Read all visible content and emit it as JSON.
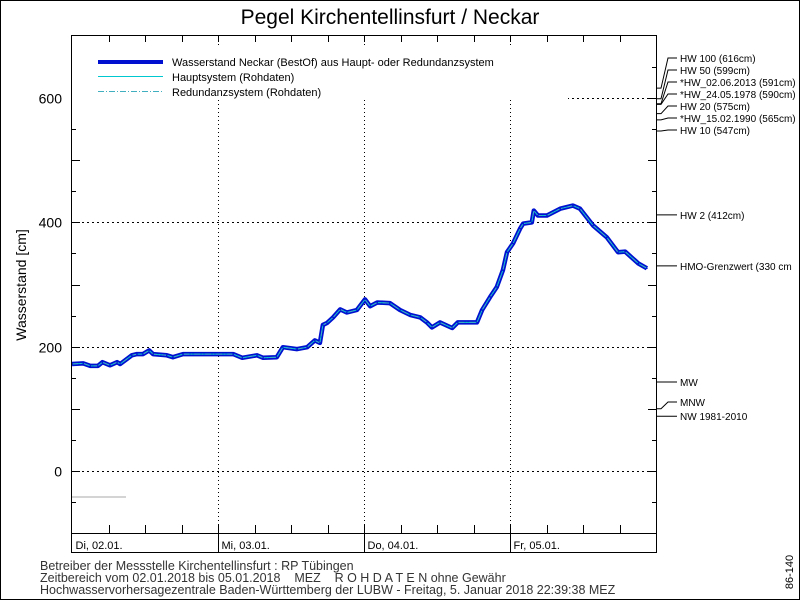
{
  "chart_data": {
    "type": "line",
    "title": "Pegel Kirchentellinsfurt / Neckar",
    "ylabel": "Wasserstand [cm]",
    "xlabel": "",
    "ylim": [
      -100,
      700
    ],
    "xlim": [
      "2018-01-02T00:00",
      "2018-01-06T00:00"
    ],
    "yticks": [
      0,
      200,
      400,
      600
    ],
    "ytick_labels": [
      "0",
      "200",
      "400",
      "600"
    ],
    "xtick_labels": [
      "Di, 02.01.",
      "Mi, 03.01.",
      "Do, 04.01.",
      "Fr, 05.01."
    ],
    "xticks": [
      "2018-01-02T00:00",
      "2018-01-03T00:00",
      "2018-01-04T00:00",
      "2018-01-05T00:00"
    ],
    "grid": true,
    "legend_position": "top-left",
    "legend": [
      {
        "label": "Wasserstand Neckar  (BestOf) aus Haupt- oder Redundanzsystem",
        "color": "#0010d0",
        "style": "thick"
      },
      {
        "label": "Hauptsystem (Rohdaten)",
        "color": "#00c8d0",
        "style": "solid"
      },
      {
        "label": "Redundanzsystem (Rohdaten)",
        "color": "#40b0c0",
        "style": "dash-dot"
      }
    ],
    "series": [
      {
        "name": "Wasserstand Neckar  (BestOf) aus Haupt- oder Redundanzsystem",
        "color": "#0010d0",
        "points": [
          [
            "2018-01-02T00:00",
            172
          ],
          [
            "2018-01-02T01:50",
            173
          ],
          [
            "2018-01-02T03:00",
            169
          ],
          [
            "2018-01-02T04:15",
            169
          ],
          [
            "2018-01-02T05:00",
            175
          ],
          [
            "2018-01-02T06:15",
            170
          ],
          [
            "2018-01-02T07:25",
            175
          ],
          [
            "2018-01-02T07:55",
            172
          ],
          [
            "2018-01-02T09:50",
            186
          ],
          [
            "2018-01-02T10:40",
            188
          ],
          [
            "2018-01-02T11:40",
            188
          ],
          [
            "2018-01-02T12:40",
            194
          ],
          [
            "2018-01-02T13:20",
            188
          ],
          [
            "2018-01-02T15:35",
            186
          ],
          [
            "2018-01-02T16:35",
            183
          ],
          [
            "2018-01-02T18:15",
            188
          ],
          [
            "2018-01-03T02:30",
            188
          ],
          [
            "2018-01-03T04:00",
            182
          ],
          [
            "2018-01-03T06:25",
            186
          ],
          [
            "2018-01-03T07:25",
            182
          ],
          [
            "2018-01-03T09:40",
            183
          ],
          [
            "2018-01-03T10:40",
            199
          ],
          [
            "2018-01-03T13:00",
            196
          ],
          [
            "2018-01-03T14:40",
            199
          ],
          [
            "2018-01-03T15:55",
            210
          ],
          [
            "2018-01-03T16:45",
            206
          ],
          [
            "2018-01-03T17:15",
            235
          ],
          [
            "2018-01-03T17:55",
            238
          ],
          [
            "2018-01-03T18:55",
            247
          ],
          [
            "2018-01-03T20:05",
            260
          ],
          [
            "2018-01-03T21:10",
            255
          ],
          [
            "2018-01-03T22:50",
            259
          ],
          [
            "2018-01-04T00:10",
            276
          ],
          [
            "2018-01-04T01:00",
            265
          ],
          [
            "2018-01-04T02:10",
            271
          ],
          [
            "2018-01-04T04:15",
            270
          ],
          [
            "2018-01-04T05:55",
            259
          ],
          [
            "2018-01-04T07:35",
            251
          ],
          [
            "2018-01-04T09:15",
            247
          ],
          [
            "2018-01-04T10:20",
            239
          ],
          [
            "2018-01-04T11:10",
            231
          ],
          [
            "2018-01-04T12:30",
            239
          ],
          [
            "2018-01-04T14:30",
            230
          ],
          [
            "2018-01-04T15:25",
            239
          ],
          [
            "2018-01-04T18:35",
            239
          ],
          [
            "2018-01-04T19:25",
            259
          ],
          [
            "2018-01-04T20:45",
            280
          ],
          [
            "2018-01-04T21:50",
            296
          ],
          [
            "2018-01-04T22:50",
            323
          ],
          [
            "2018-01-04T23:30",
            352
          ],
          [
            "2018-01-05T00:30",
            366
          ],
          [
            "2018-01-05T01:40",
            390
          ],
          [
            "2018-01-05T02:10",
            398
          ],
          [
            "2018-01-05T03:35",
            400
          ],
          [
            "2018-01-05T03:55",
            419
          ],
          [
            "2018-01-05T04:35",
            411
          ],
          [
            "2018-01-05T06:05",
            411
          ],
          [
            "2018-01-05T08:15",
            422
          ],
          [
            "2018-01-05T10:20",
            427
          ],
          [
            "2018-01-05T11:30",
            422
          ],
          [
            "2018-01-05T13:40",
            395
          ],
          [
            "2018-01-05T15:55",
            376
          ],
          [
            "2018-01-05T17:45",
            352
          ],
          [
            "2018-01-05T18:55",
            353
          ],
          [
            "2018-01-05T21:05",
            334
          ],
          [
            "2018-01-05T22:30",
            326
          ]
        ]
      }
    ],
    "reference_levels": [
      {
        "label": "HW 100 (616cm)",
        "value": 616
      },
      {
        "label": "HW 50 (599cm)",
        "value": 599
      },
      {
        "label": "*HW_02.06.2013 (591cm)",
        "value": 591
      },
      {
        "label": "*HW_24.05.1978 (590cm)",
        "value": 590
      },
      {
        "label": "HW 20 (575cm)",
        "value": 575
      },
      {
        "label": "*HW_15.02.1990 (565cm)",
        "value": 565
      },
      {
        "label": "HW 10 (547cm)",
        "value": 547
      },
      {
        "label": "HW 2 (412cm)",
        "value": 412
      },
      {
        "label": "HMO-Grenzwert (330 cm",
        "value": 330
      },
      {
        "label": "MW",
        "value": 143
      },
      {
        "label": "MNW",
        "value": 100
      },
      {
        "label": "NW 1981-2010",
        "value": 88
      }
    ]
  },
  "footer": {
    "line1": "Betreiber der Messstelle Kirchentellinsfurt : RP Tübingen",
    "line2": "Zeitbereich vom 02.01.2018 bis 05.01.2018    MEZ    R O H D A T E N ohne Gewähr",
    "line3": "Hochwasservorhersagezentrale Baden-Württemberg der LUBW - Freitag, 5. Januar 2018 22:39:38 MEZ",
    "code": "86-140"
  }
}
